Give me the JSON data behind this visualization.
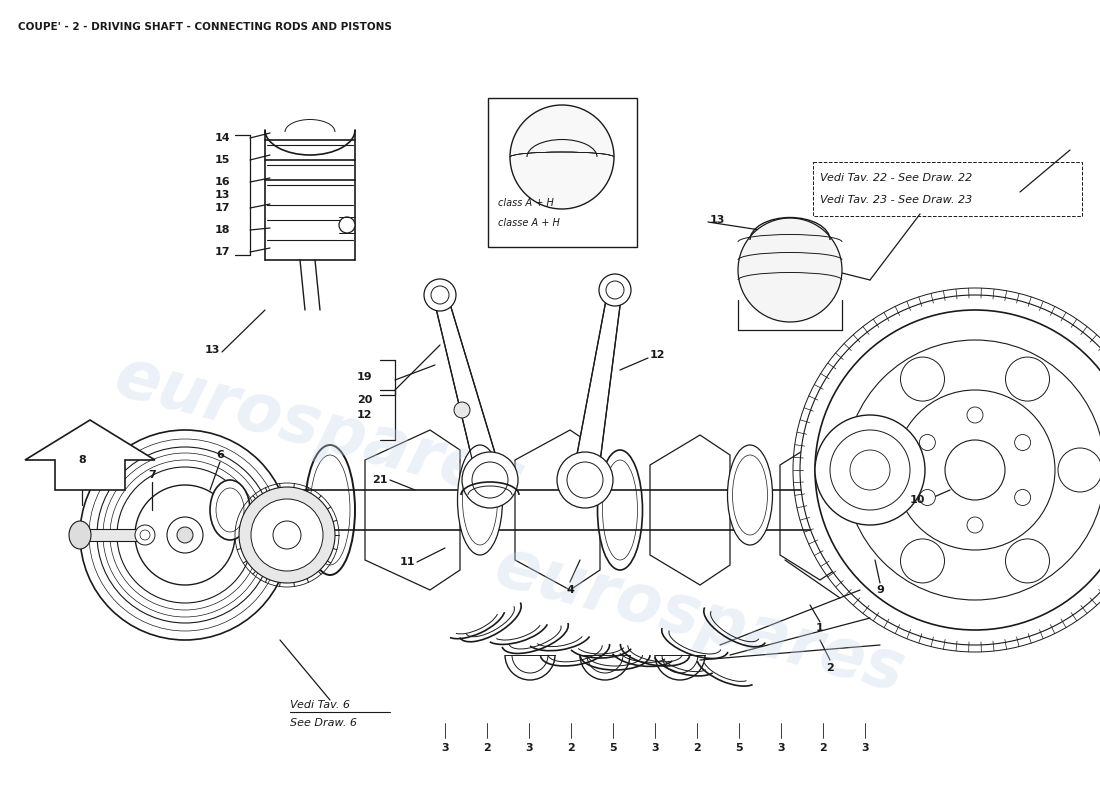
{
  "title": "COUPE' - 2 - DRIVING SHAFT - CONNECTING RODS AND PISTONS",
  "title_fontsize": 7.5,
  "bg_color": "#ffffff",
  "watermark_text": "eurospares",
  "watermark_color": "#c8d4e8",
  "watermark_alpha": 0.35,
  "line_color": "#1a1a1a",
  "font_color": "#1a1a1a",
  "vedi_22": "Vedi Tav. 22 - See Draw. 22",
  "vedi_23": "Vedi Tav. 23 - See Draw. 23",
  "vedi_6_it": "Vedi Tav. 6",
  "vedi_6_en": "See Draw. 6",
  "classe_ah": "classe A + H",
  "class_ah": "class A + H",
  "bottom_seq": [
    "3",
    "2",
    "3",
    "2",
    "5",
    "3",
    "2",
    "5",
    "3",
    "2",
    "3"
  ]
}
